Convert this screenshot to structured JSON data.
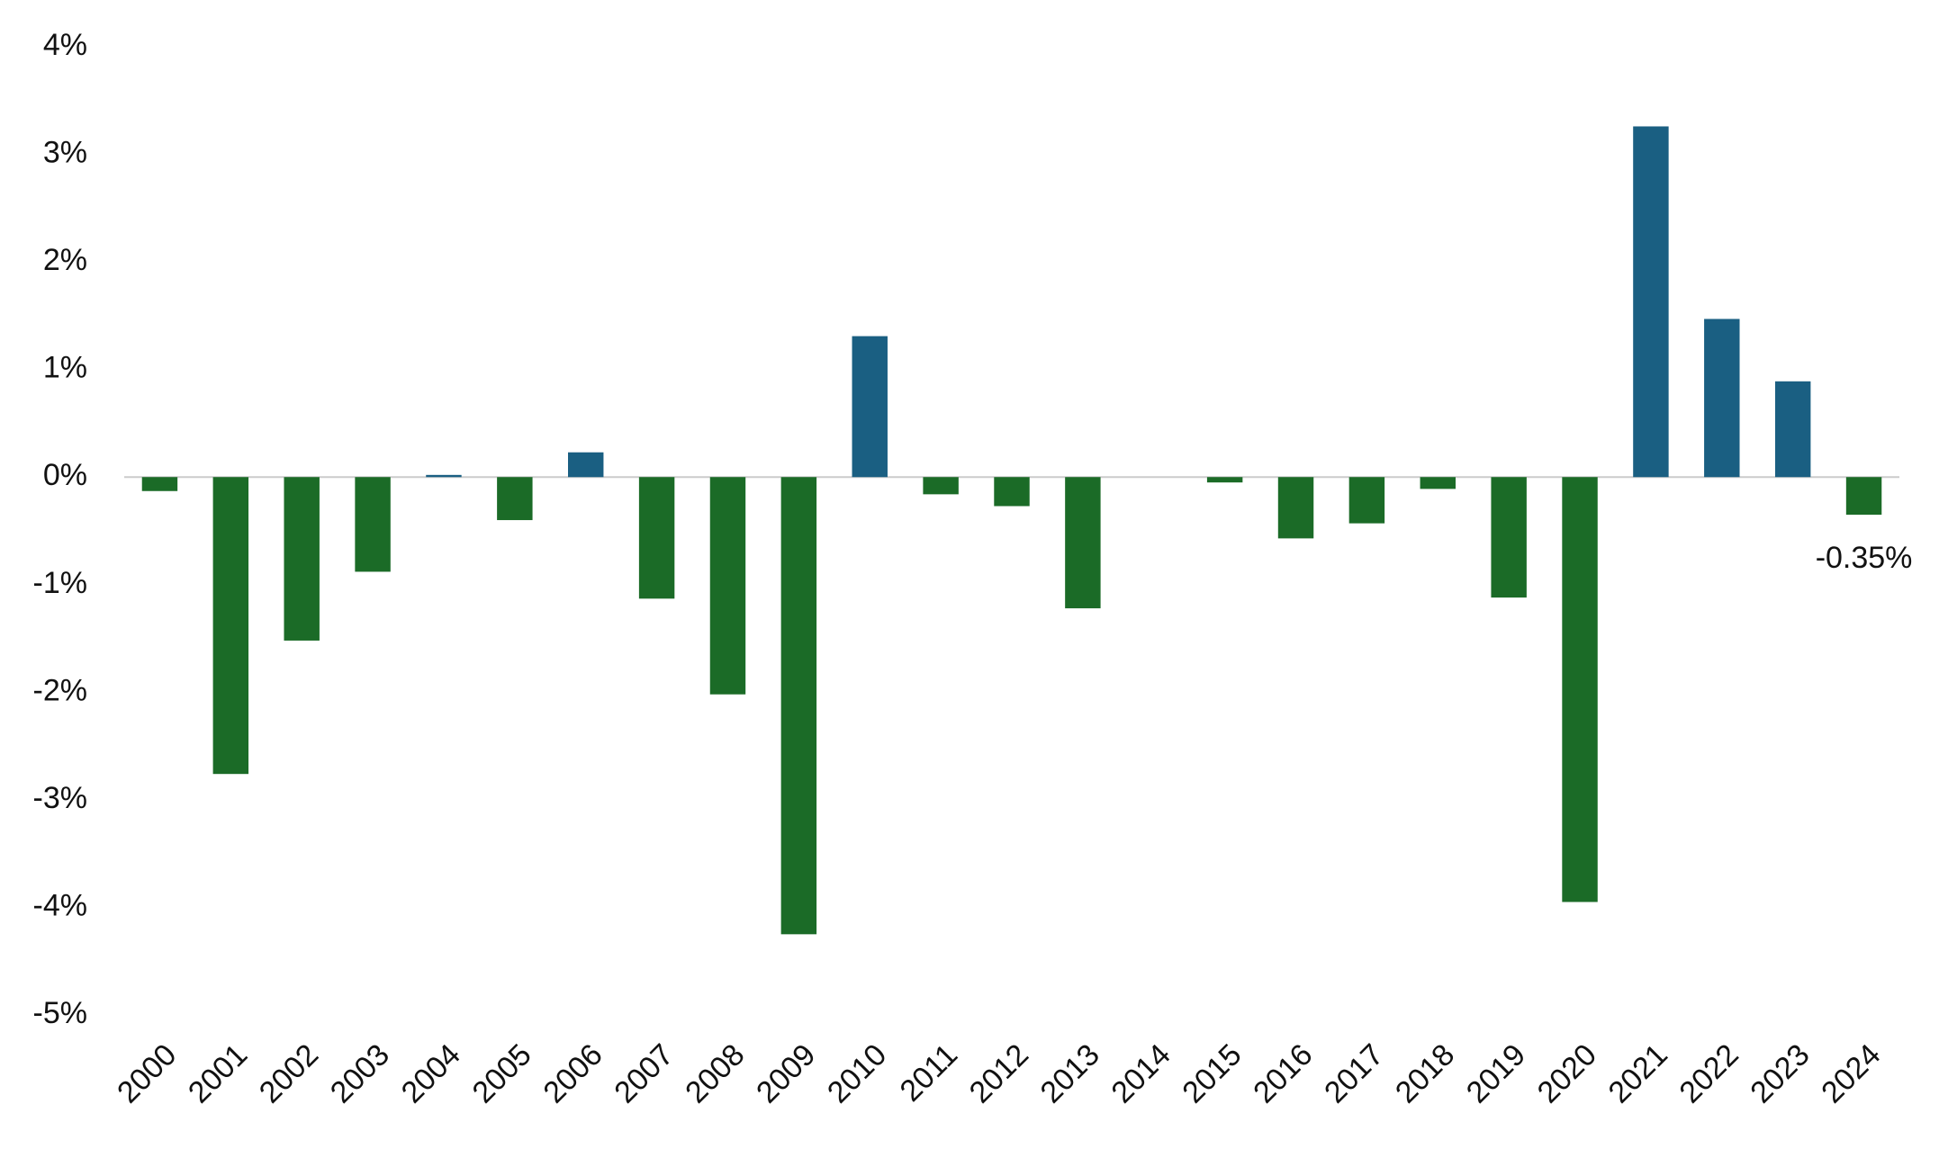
{
  "chart_data": {
    "type": "bar",
    "categories": [
      "2000",
      "2001",
      "2002",
      "2003",
      "2004",
      "2005",
      "2006",
      "2007",
      "2008",
      "2009",
      "2010",
      "2011",
      "2012",
      "2013",
      "2014",
      "2015",
      "2016",
      "2017",
      "2018",
      "2019",
      "2020",
      "2021",
      "2022",
      "2023",
      "2024"
    ],
    "values": [
      -0.13,
      -2.76,
      -1.52,
      -0.88,
      0.02,
      -0.4,
      0.23,
      -1.13,
      -2.02,
      -4.25,
      1.31,
      -0.16,
      -0.27,
      -1.22,
      0,
      -0.05,
      -0.57,
      -0.43,
      -0.11,
      -1.12,
      -3.95,
      3.26,
      1.47,
      0.89,
      -0.35
    ],
    "value_labels": [
      null,
      null,
      null,
      null,
      null,
      null,
      null,
      null,
      null,
      null,
      null,
      null,
      null,
      null,
      null,
      null,
      null,
      null,
      null,
      null,
      null,
      null,
      null,
      null,
      "-0.35%"
    ],
    "positive_color": "#1a5f82",
    "negative_color": "#1b6b27",
    "ylim": [
      -5,
      4
    ],
    "yticks": [
      {
        "value": -5,
        "label": "-5%"
      },
      {
        "value": -4,
        "label": "-4%"
      },
      {
        "value": -3,
        "label": "-3%"
      },
      {
        "value": -2,
        "label": "-2%"
      },
      {
        "value": -1,
        "label": "-1%"
      },
      {
        "value": 0,
        "label": "0%"
      },
      {
        "value": 1,
        "label": "1%"
      },
      {
        "value": 2,
        "label": "2%"
      },
      {
        "value": 3,
        "label": "3%"
      },
      {
        "value": 4,
        "label": "4%"
      }
    ],
    "grid": false
  }
}
